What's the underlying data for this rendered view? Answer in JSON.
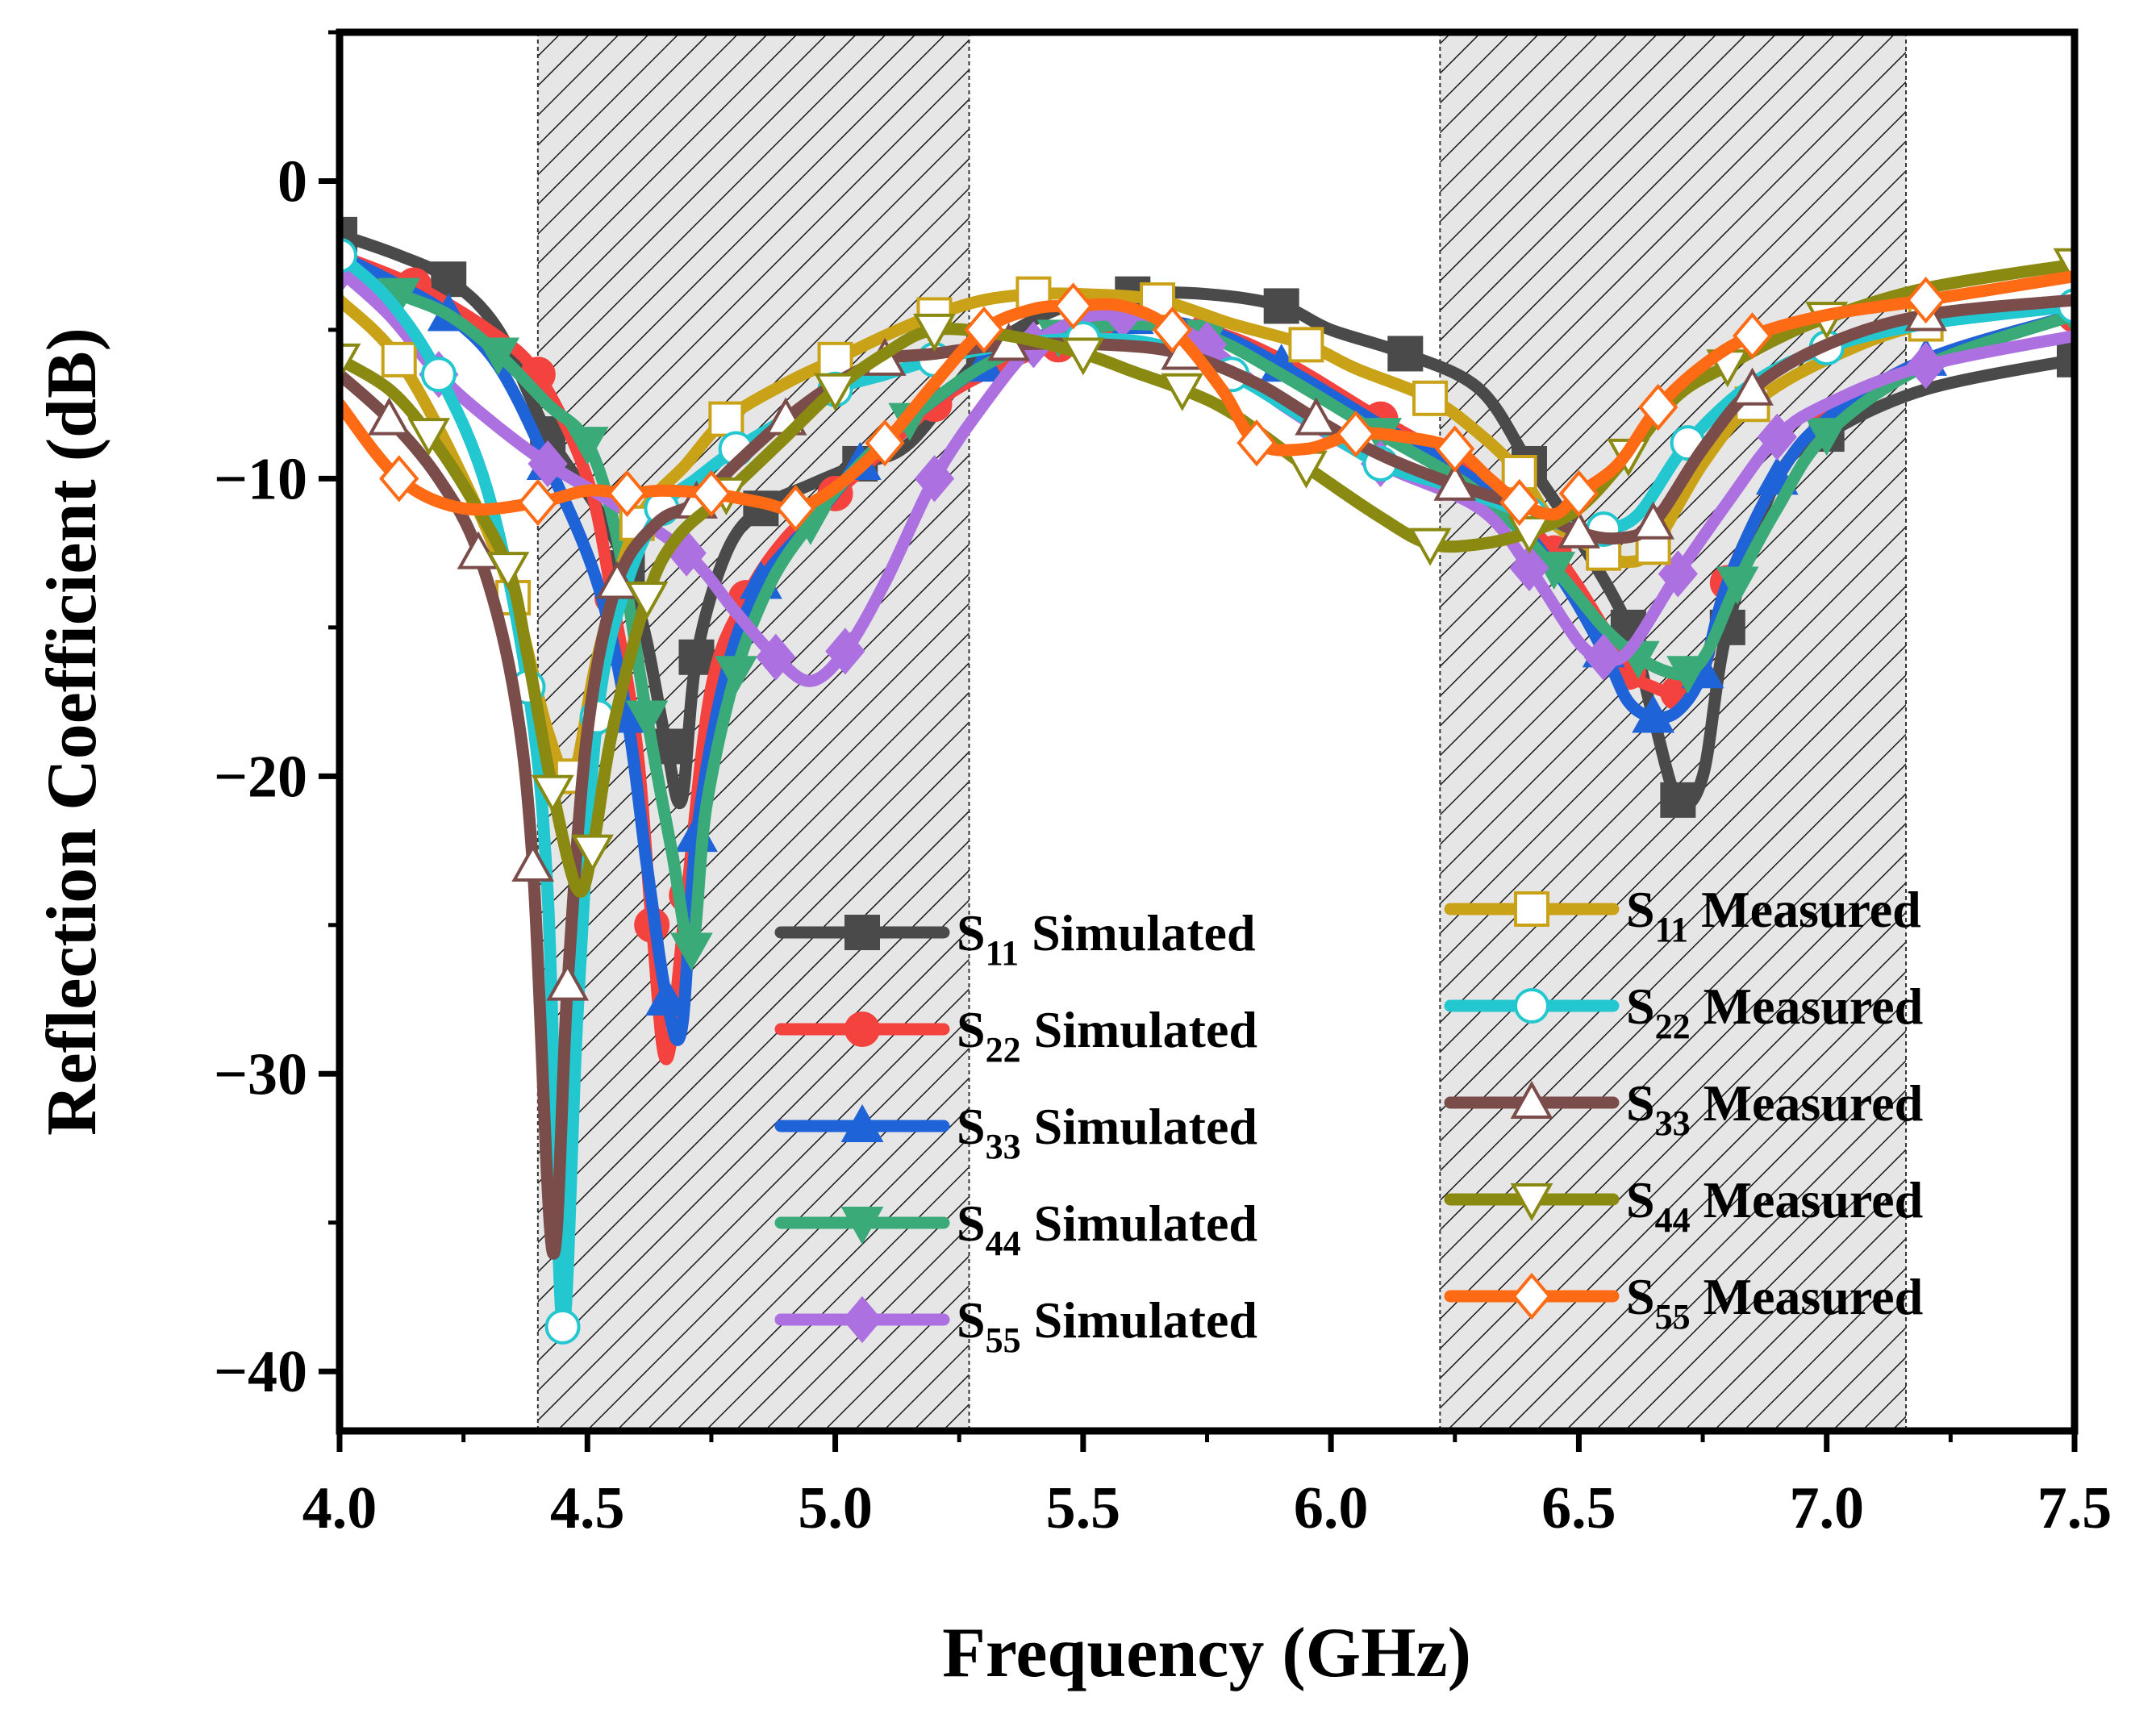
{
  "chart_data": {
    "type": "line",
    "title": "",
    "xlabel": "Frequency (GHz)",
    "ylabel": "Reflection Coefficient (dB)",
    "xlim": [
      4.0,
      7.5
    ],
    "ylim": [
      -42,
      5
    ],
    "xticks": [
      4.0,
      4.5,
      5.0,
      5.5,
      6.0,
      6.5,
      7.0,
      7.5
    ],
    "xtick_labels": [
      "4.0",
      "4.5",
      "5.0",
      "5.5",
      "6.0",
      "6.5",
      "7.0",
      "7.5"
    ],
    "yticks": [
      0,
      -10,
      -20,
      -30,
      -40
    ],
    "ytick_labels": [
      "0",
      "−10",
      "−20",
      "−30",
      "−40"
    ],
    "shaded_bands": [
      [
        4.4,
        5.27
      ],
      [
        6.22,
        7.16
      ]
    ],
    "series": [
      {
        "name": "S11 Simulated",
        "sub": "11",
        "kind": "Simulated",
        "color": "#4a4a4a",
        "marker": "square",
        "filled": true,
        "x": [
          4.0,
          4.12,
          4.22,
          4.32,
          4.42,
          4.52,
          4.58,
          4.62,
          4.66,
          4.69,
          4.72,
          4.78,
          4.85,
          4.95,
          5.05,
          5.15,
          5.3,
          5.45,
          5.6,
          5.75,
          5.9,
          6.0,
          6.15,
          6.3,
          6.4,
          6.5,
          6.6,
          6.65,
          6.7,
          6.75,
          6.8,
          6.9,
          7.0,
          7.2,
          7.5
        ],
        "y": [
          -1.8,
          -2.5,
          -3.3,
          -5,
          -8.5,
          -11,
          -13,
          -15.5,
          -19,
          -20.8,
          -16,
          -12.5,
          -11,
          -10.2,
          -9.5,
          -8.8,
          -5.8,
          -4.3,
          -3.8,
          -3.8,
          -4.2,
          -5,
          -5.8,
          -7,
          -9.5,
          -12,
          -15,
          -18,
          -20.8,
          -20,
          -15,
          -10,
          -8.5,
          -7,
          -6
        ]
      },
      {
        "name": "S22 Simulated",
        "sub": "22",
        "kind": "Simulated",
        "color": "#f4423f",
        "marker": "circle",
        "filled": true,
        "x": [
          4.0,
          4.15,
          4.3,
          4.4,
          4.5,
          4.55,
          4.6,
          4.63,
          4.66,
          4.7,
          4.75,
          4.82,
          4.9,
          5.0,
          5.1,
          5.2,
          5.3,
          5.45,
          5.6,
          5.75,
          5.9,
          6.1,
          6.3,
          6.45,
          6.55,
          6.6,
          6.65,
          6.7,
          6.75,
          6.8,
          6.9,
          7.0,
          7.2,
          7.5
        ],
        "y": [
          -2.5,
          -3.5,
          -5,
          -6.5,
          -10,
          -14,
          -19,
          -25,
          -29.5,
          -24,
          -17,
          -14,
          -12,
          -10.5,
          -9,
          -7.5,
          -6.5,
          -5.5,
          -4.8,
          -5,
          -6,
          -8,
          -10,
          -12.5,
          -15,
          -16.5,
          -17,
          -17.2,
          -16.5,
          -13.5,
          -10,
          -8,
          -6,
          -4.5
        ]
      },
      {
        "name": "S33 Simulated",
        "sub": "33",
        "kind": "Simulated",
        "color": "#1f63d8",
        "marker": "triangle-up",
        "filled": true,
        "x": [
          4.0,
          4.12,
          4.22,
          4.32,
          4.42,
          4.52,
          4.58,
          4.62,
          4.66,
          4.69,
          4.72,
          4.78,
          4.85,
          4.95,
          5.05,
          5.15,
          5.3,
          5.45,
          5.6,
          5.75,
          5.9,
          6.1,
          6.3,
          6.45,
          6.55,
          6.6,
          6.65,
          6.7,
          6.75,
          6.8,
          6.9,
          7.0,
          7.2,
          7.5
        ],
        "y": [
          -2.5,
          -3.5,
          -4.5,
          -6.2,
          -9.5,
          -13.5,
          -18,
          -23,
          -27.5,
          -28.5,
          -22,
          -16.5,
          -13.5,
          -11.5,
          -9.5,
          -8,
          -6.2,
          -5,
          -4.6,
          -5,
          -6.2,
          -8.2,
          -10.2,
          -13,
          -15.8,
          -17.5,
          -18,
          -17.8,
          -16.5,
          -13.5,
          -10,
          -8,
          -6,
          -4.5
        ]
      },
      {
        "name": "S44 Simulated",
        "sub": "44",
        "kind": "Simulated",
        "color": "#3aaa78",
        "marker": "triangle-down",
        "filled": true,
        "x": [
          4.0,
          4.12,
          4.22,
          4.32,
          4.42,
          4.5,
          4.56,
          4.62,
          4.67,
          4.71,
          4.74,
          4.8,
          4.87,
          4.95,
          5.05,
          5.15,
          5.3,
          5.45,
          5.6,
          5.75,
          5.9,
          6.1,
          6.3,
          6.45,
          6.55,
          6.62,
          6.68,
          6.72,
          6.76,
          6.82,
          6.9,
          7.0,
          7.2,
          7.5
        ],
        "y": [
          -3,
          -3.8,
          -4.5,
          -5.8,
          -7.5,
          -8.8,
          -12,
          -18,
          -22.5,
          -25.8,
          -21,
          -16.5,
          -13.5,
          -11.5,
          -9.5,
          -8,
          -6.2,
          -5.2,
          -4.8,
          -5.2,
          -6.5,
          -8.5,
          -10.5,
          -13,
          -15,
          -16,
          -16.5,
          -16.5,
          -15.8,
          -13.5,
          -11,
          -8.5,
          -6.2,
          -4.5
        ]
      },
      {
        "name": "S55 Simulated",
        "sub": "55",
        "kind": "Simulated",
        "color": "#ad70e0",
        "marker": "diamond",
        "filled": true,
        "x": [
          4.0,
          4.1,
          4.2,
          4.3,
          4.42,
          4.55,
          4.7,
          4.8,
          4.88,
          4.95,
          5.02,
          5.1,
          5.2,
          5.3,
          5.4,
          5.5,
          5.58,
          5.65,
          5.75,
          5.9,
          6.1,
          6.3,
          6.4,
          6.5,
          6.55,
          6.6,
          6.7,
          6.8,
          6.9,
          7.0,
          7.2,
          7.5
        ],
        "y": [
          -3,
          -4.5,
          -6.5,
          -8,
          -9.5,
          -10.8,
          -12.5,
          -14.5,
          -16,
          -16.8,
          -15.8,
          -13.5,
          -10,
          -7.5,
          -5.5,
          -4.6,
          -4.5,
          -4.6,
          -5.5,
          -7.5,
          -9.5,
          -11,
          -13,
          -15.5,
          -16,
          -15.8,
          -13.2,
          -10.8,
          -8.6,
          -7.5,
          -6.2,
          -5.2
        ]
      },
      {
        "name": "S11 Measured",
        "sub": "11",
        "kind": "Measured",
        "color": "#c9a218",
        "marker": "square",
        "filled": false,
        "x": [
          4.0,
          4.12,
          4.25,
          4.35,
          4.42,
          4.47,
          4.52,
          4.6,
          4.7,
          4.78,
          4.9,
          5.0,
          5.1,
          5.2,
          5.3,
          5.4,
          5.5,
          5.65,
          5.8,
          5.95,
          6.05,
          6.2,
          6.3,
          6.38,
          6.45,
          6.55,
          6.6,
          6.65,
          6.75,
          6.85,
          7.0,
          7.2,
          7.5
        ],
        "y": [
          -4,
          -6,
          -10,
          -14,
          -18.5,
          -20,
          -16,
          -11.5,
          -9.5,
          -8,
          -6.8,
          -6,
          -5.2,
          -4.5,
          -4,
          -3.8,
          -3.8,
          -4,
          -4.8,
          -5.5,
          -6.3,
          -7.3,
          -8.5,
          -9.8,
          -11.5,
          -12.5,
          -12.8,
          -12.3,
          -9.5,
          -7.5,
          -6,
          -4.8,
          -4.2
        ]
      },
      {
        "name": "S22 Measured",
        "sub": "22",
        "kind": "Measured",
        "color": "#22c7cf",
        "marker": "circle",
        "filled": false,
        "x": [
          4.0,
          4.1,
          4.2,
          4.3,
          4.38,
          4.42,
          4.45,
          4.48,
          4.52,
          4.58,
          4.65,
          4.72,
          4.8,
          4.9,
          5.0,
          5.1,
          5.2,
          5.35,
          5.5,
          5.65,
          5.8,
          5.95,
          6.1,
          6.25,
          6.4,
          6.5,
          6.55,
          6.62,
          6.72,
          6.85,
          7.0,
          7.2,
          7.5
        ],
        "y": [
          -2.5,
          -4,
          -6.5,
          -10.5,
          -17,
          -24,
          -38.5,
          -28,
          -18,
          -13.5,
          -11,
          -10,
          -9,
          -8,
          -7,
          -6.5,
          -6,
          -5.5,
          -5.3,
          -5.5,
          -6.5,
          -8,
          -9.5,
          -10.3,
          -11.2,
          -11.7,
          -11.7,
          -11.2,
          -8.8,
          -6.8,
          -5.6,
          -4.8,
          -4.2
        ]
      },
      {
        "name": "S33 Measured",
        "sub": "33",
        "kind": "Measured",
        "color": "#7a4c4a",
        "marker": "triangle-up",
        "filled": false,
        "x": [
          4.0,
          4.1,
          4.2,
          4.28,
          4.35,
          4.39,
          4.43,
          4.46,
          4.5,
          4.56,
          4.64,
          4.72,
          4.8,
          4.9,
          5.0,
          5.1,
          5.2,
          5.35,
          5.55,
          5.7,
          5.85,
          5.97,
          6.1,
          6.25,
          6.4,
          6.5,
          6.58,
          6.65,
          6.75,
          6.85,
          7.0,
          7.2,
          7.5
        ],
        "y": [
          -6.5,
          -8,
          -10,
          -12.5,
          -17,
          -23,
          -36,
          -27,
          -18.5,
          -13.5,
          -11.5,
          -10.8,
          -9.5,
          -8,
          -6.8,
          -6,
          -5.8,
          -5.5,
          -5.5,
          -5.8,
          -6.8,
          -8,
          -9.2,
          -10.2,
          -11,
          -11.8,
          -12,
          -11.5,
          -9,
          -7,
          -5.5,
          -4.5,
          -4
        ]
      },
      {
        "name": "S44 Measured",
        "sub": "44",
        "kind": "Measured",
        "color": "#8a8a12",
        "marker": "triangle-down",
        "filled": false,
        "x": [
          4.0,
          4.1,
          4.18,
          4.26,
          4.34,
          4.38,
          4.43,
          4.48,
          4.51,
          4.55,
          4.62,
          4.68,
          4.78,
          4.9,
          5.0,
          5.1,
          5.2,
          5.35,
          5.5,
          5.6,
          5.7,
          5.8,
          5.95,
          6.1,
          6.2,
          6.3,
          6.4,
          6.5,
          6.6,
          6.7,
          6.8,
          6.9,
          7.0,
          7.2,
          7.5
        ],
        "y": [
          -6,
          -7,
          -8.5,
          -10.5,
          -13,
          -16,
          -20.5,
          -23.8,
          -22.5,
          -18.5,
          -14,
          -12,
          -10.5,
          -8.6,
          -7,
          -5.8,
          -5,
          -5.2,
          -5.8,
          -6.4,
          -7,
          -7.8,
          -9.6,
          -11.3,
          -12.2,
          -12.2,
          -11.8,
          -11,
          -9.2,
          -7.2,
          -6.2,
          -5.3,
          -4.6,
          -3.6,
          -2.8
        ]
      },
      {
        "name": "S55 Measured",
        "sub": "55",
        "kind": "Measured",
        "color": "#ff6a14",
        "marker": "diamond",
        "filled": false,
        "x": [
          4.0,
          4.12,
          4.25,
          4.4,
          4.5,
          4.58,
          4.65,
          4.75,
          4.85,
          4.92,
          5.0,
          5.1,
          5.2,
          5.3,
          5.4,
          5.48,
          5.58,
          5.68,
          5.78,
          5.85,
          5.95,
          6.05,
          6.15,
          6.25,
          6.32,
          6.38,
          6.45,
          6.5,
          6.58,
          6.66,
          6.75,
          6.85,
          7.0,
          7.2,
          7.5
        ],
        "y": [
          -7.5,
          -10,
          -11,
          -10.8,
          -10.4,
          -10.5,
          -10.4,
          -10.5,
          -10.8,
          -11,
          -10.3,
          -8.8,
          -6.8,
          -5,
          -4.3,
          -4.2,
          -4.2,
          -5,
          -7,
          -8.8,
          -9,
          -8.5,
          -8.6,
          -9,
          -10,
          -10.8,
          -11.2,
          -10.5,
          -9.5,
          -7.6,
          -6.2,
          -5.2,
          -4.5,
          -4,
          -3.2
        ]
      }
    ]
  }
}
